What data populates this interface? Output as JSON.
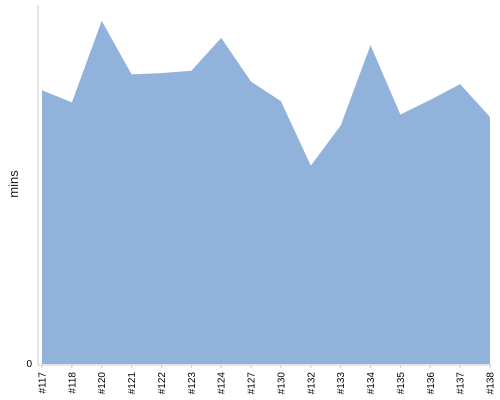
{
  "chart_data": {
    "type": "area",
    "xlabel": "",
    "ylabel": "mins",
    "categories": [
      "#117",
      "#118",
      "#120",
      "#121",
      "#122",
      "#123",
      "#124",
      "#127",
      "#130",
      "#132",
      "#133",
      "#134",
      "#135",
      "#136",
      "#137",
      "#138"
    ],
    "series": [
      {
        "values": [
          22.5,
          21.5,
          28.2,
          23.8,
          23.9,
          24.1,
          26.8,
          23.2,
          21.6,
          16.3,
          19.6,
          26.2,
          20.5,
          21.7,
          23.0,
          20.3
        ]
      }
    ],
    "ylim": [
      0,
      29.5
    ],
    "yticks": [
      0
    ],
    "grid": false,
    "colors": {
      "area": "#91b3db",
      "axis": "#c8c8c8"
    }
  }
}
